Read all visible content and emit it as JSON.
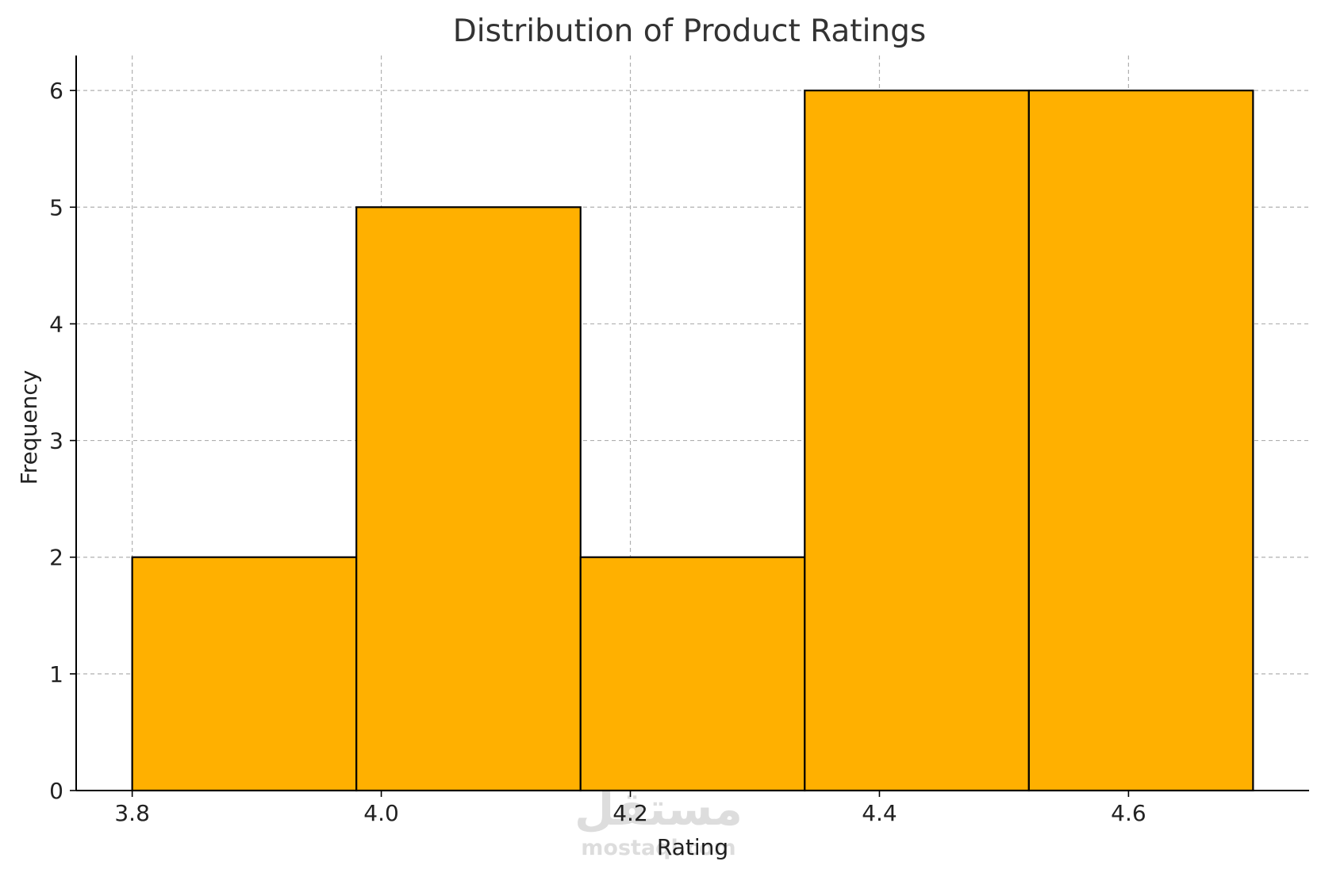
{
  "chart_data": {
    "type": "histogram",
    "title": "Distribution of Product Ratings",
    "xlabel": "Rating",
    "ylabel": "Frequency",
    "bins": [
      {
        "start": 3.8,
        "end": 3.98,
        "count": 2
      },
      {
        "start": 3.98,
        "end": 4.16,
        "count": 5
      },
      {
        "start": 4.16,
        "end": 4.34,
        "count": 2
      },
      {
        "start": 4.34,
        "end": 4.52,
        "count": 6
      },
      {
        "start": 4.52,
        "end": 4.7,
        "count": 6
      }
    ],
    "xlim": [
      3.755,
      4.745
    ],
    "ylim": [
      0,
      6.3
    ],
    "xticks": [
      "3.8",
      "4.0",
      "4.2",
      "4.4",
      "4.6"
    ],
    "xtick_values": [
      3.8,
      4.0,
      4.2,
      4.4,
      4.6
    ],
    "yticks": [
      "0",
      "1",
      "2",
      "3",
      "4",
      "5",
      "6"
    ],
    "ytick_values": [
      0,
      1,
      2,
      3,
      4,
      5,
      6
    ],
    "grid": true,
    "bar_color": "#FFB000",
    "edge_color": "#000000",
    "grid_color": "#b0b0b0"
  },
  "watermark": {
    "text": "مستقل",
    "subtext": "mostaql.com"
  }
}
